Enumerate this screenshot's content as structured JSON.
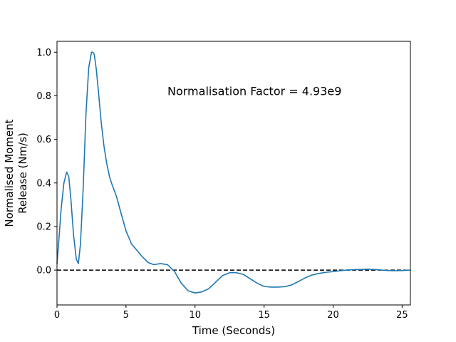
{
  "chart_data": {
    "type": "line",
    "title": "",
    "xlabel": "Time (Seconds)",
    "ylabel_lines": [
      "Normalised Moment",
      "Release (Nm/s)"
    ],
    "xlim": [
      0,
      25.6
    ],
    "ylim": [
      -0.16,
      1.05
    ],
    "grid": false,
    "legend": "none",
    "xticks": [
      0,
      5,
      10,
      15,
      20,
      25
    ],
    "xtick_labels": [
      "0",
      "5",
      "10",
      "15",
      "20",
      "25"
    ],
    "yticks": [
      0.0,
      0.2,
      0.4,
      0.6,
      0.8,
      1.0
    ],
    "ytick_labels": [
      "0.0",
      "0.2",
      "0.4",
      "0.6",
      "0.8",
      "1.0"
    ],
    "annotation": {
      "text": "Normalisation Factor = 4.93e9",
      "x": 8.0,
      "y": 0.82
    },
    "reference_line": {
      "y": 0,
      "style": "dashed",
      "color": "#000000"
    },
    "series": [
      {
        "color": "#1f77b4",
        "x": [
          0.0,
          0.15,
          0.3,
          0.5,
          0.7,
          0.85,
          1.0,
          1.2,
          1.4,
          1.55,
          1.7,
          1.9,
          2.1,
          2.3,
          2.5,
          2.6,
          2.7,
          2.85,
          3.0,
          3.2,
          3.4,
          3.6,
          3.8,
          4.0,
          4.3,
          4.6,
          5.0,
          5.4,
          5.8,
          6.2,
          6.6,
          7.0,
          7.5,
          8.0,
          8.5,
          9.0,
          9.5,
          10.0,
          10.5,
          11.0,
          11.5,
          12.0,
          12.5,
          13.0,
          13.5,
          14.0,
          14.5,
          15.0,
          15.5,
          16.0,
          16.5,
          17.0,
          17.5,
          18.0,
          18.5,
          19.0,
          19.5,
          20.0,
          20.5,
          21.0,
          21.5,
          22.0,
          22.5,
          23.0,
          23.5,
          24.0,
          24.5,
          25.0,
          25.6
        ],
        "y": [
          0.03,
          0.15,
          0.28,
          0.4,
          0.45,
          0.43,
          0.33,
          0.16,
          0.05,
          0.03,
          0.12,
          0.38,
          0.72,
          0.93,
          1.0,
          1.0,
          0.99,
          0.92,
          0.82,
          0.68,
          0.57,
          0.49,
          0.43,
          0.39,
          0.34,
          0.27,
          0.18,
          0.12,
          0.09,
          0.06,
          0.035,
          0.025,
          0.03,
          0.025,
          -0.005,
          -0.06,
          -0.095,
          -0.105,
          -0.1,
          -0.085,
          -0.055,
          -0.025,
          -0.012,
          -0.012,
          -0.02,
          -0.04,
          -0.06,
          -0.075,
          -0.078,
          -0.078,
          -0.076,
          -0.068,
          -0.052,
          -0.035,
          -0.022,
          -0.015,
          -0.01,
          -0.007,
          -0.003,
          0.0,
          0.002,
          0.003,
          0.004,
          0.003,
          0.0,
          -0.002,
          -0.003,
          -0.002,
          0.0
        ]
      }
    ]
  }
}
